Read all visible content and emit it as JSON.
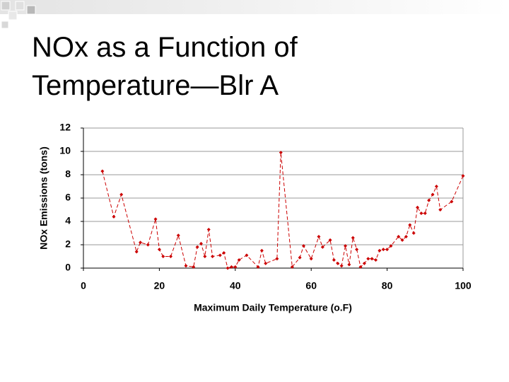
{
  "chart_data": {
    "type": "line",
    "title": [
      "NOx as a Function of",
      "Temperature—Blr A"
    ],
    "xlabel": "Maximum Daily Temperature (o.F)",
    "ylabel": "NOx Emissions (tons)",
    "color": "#cc0000",
    "dashed": true,
    "markers": true,
    "grid": true,
    "xlim": [
      0,
      100
    ],
    "xticks": [
      0,
      20,
      40,
      60,
      80,
      100
    ],
    "ylim": [
      0,
      12
    ],
    "yticks": [
      0,
      2,
      4,
      6,
      8,
      10,
      12
    ],
    "x": [
      5,
      8,
      10,
      14,
      15,
      17,
      19,
      20,
      21,
      23,
      25,
      27,
      29,
      30,
      31,
      32,
      33,
      34,
      36,
      37,
      38,
      39,
      40,
      41,
      43,
      46,
      47,
      48,
      51,
      52,
      55,
      57,
      58,
      60,
      62,
      63,
      65,
      66,
      67,
      68,
      69,
      70,
      71,
      72,
      73,
      74,
      75,
      76,
      77,
      78,
      79,
      80,
      81,
      83,
      84,
      85,
      86,
      87,
      88,
      89,
      90,
      91,
      92,
      93,
      94,
      97,
      100
    ],
    "values": [
      8.3,
      4.4,
      6.3,
      1.4,
      2.2,
      2.0,
      4.2,
      1.6,
      1.0,
      1.0,
      2.8,
      0.2,
      0.1,
      1.8,
      2.1,
      1.0,
      3.3,
      1.0,
      1.1,
      1.3,
      0.0,
      0.1,
      0.1,
      0.7,
      1.1,
      0.1,
      1.5,
      0.4,
      0.8,
      9.9,
      0.1,
      0.9,
      1.9,
      0.8,
      2.7,
      1.8,
      2.4,
      0.7,
      0.4,
      0.2,
      1.9,
      0.3,
      2.6,
      1.6,
      0.1,
      0.4,
      0.8,
      0.8,
      0.7,
      1.5,
      1.6,
      1.6,
      1.9,
      2.7,
      2.4,
      2.7,
      3.7,
      3.0,
      5.2,
      4.7,
      4.7,
      5.8,
      6.3,
      7.0,
      5.0,
      5.7,
      7.9
    ]
  }
}
